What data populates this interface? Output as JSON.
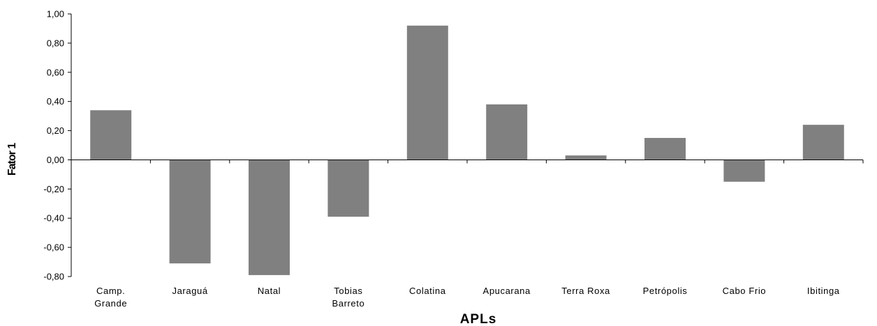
{
  "chart_data": {
    "type": "bar",
    "title": "",
    "xlabel": "APLs",
    "ylabel": "Fator 1",
    "categories": [
      [
        "Camp.",
        "Grande"
      ],
      [
        "Jaraguá"
      ],
      [
        "Natal"
      ],
      [
        "Tobias",
        "Barreto"
      ],
      [
        "Colatina"
      ],
      [
        "Apucarana"
      ],
      [
        "Terra Roxa"
      ],
      [
        "Petrópolis"
      ],
      [
        "Cabo Frio"
      ],
      [
        "Ibitinga"
      ]
    ],
    "values": [
      0.34,
      -0.71,
      -0.79,
      -0.39,
      0.92,
      0.38,
      0.03,
      0.15,
      -0.15,
      0.24
    ],
    "ylim": [
      -0.8,
      1.0
    ],
    "yticks": [
      1.0,
      0.8,
      0.6,
      0.4,
      0.2,
      0.0,
      -0.2,
      -0.4,
      -0.6,
      -0.8
    ],
    "ytick_labels": [
      "1,00",
      "0,80",
      "0,60",
      "0,40",
      "0,20",
      "0,00",
      "-0,20",
      "-0,40",
      "-0,60",
      "-0,80"
    ],
    "bar_color": "#808080",
    "grid": false,
    "legend": "none"
  }
}
